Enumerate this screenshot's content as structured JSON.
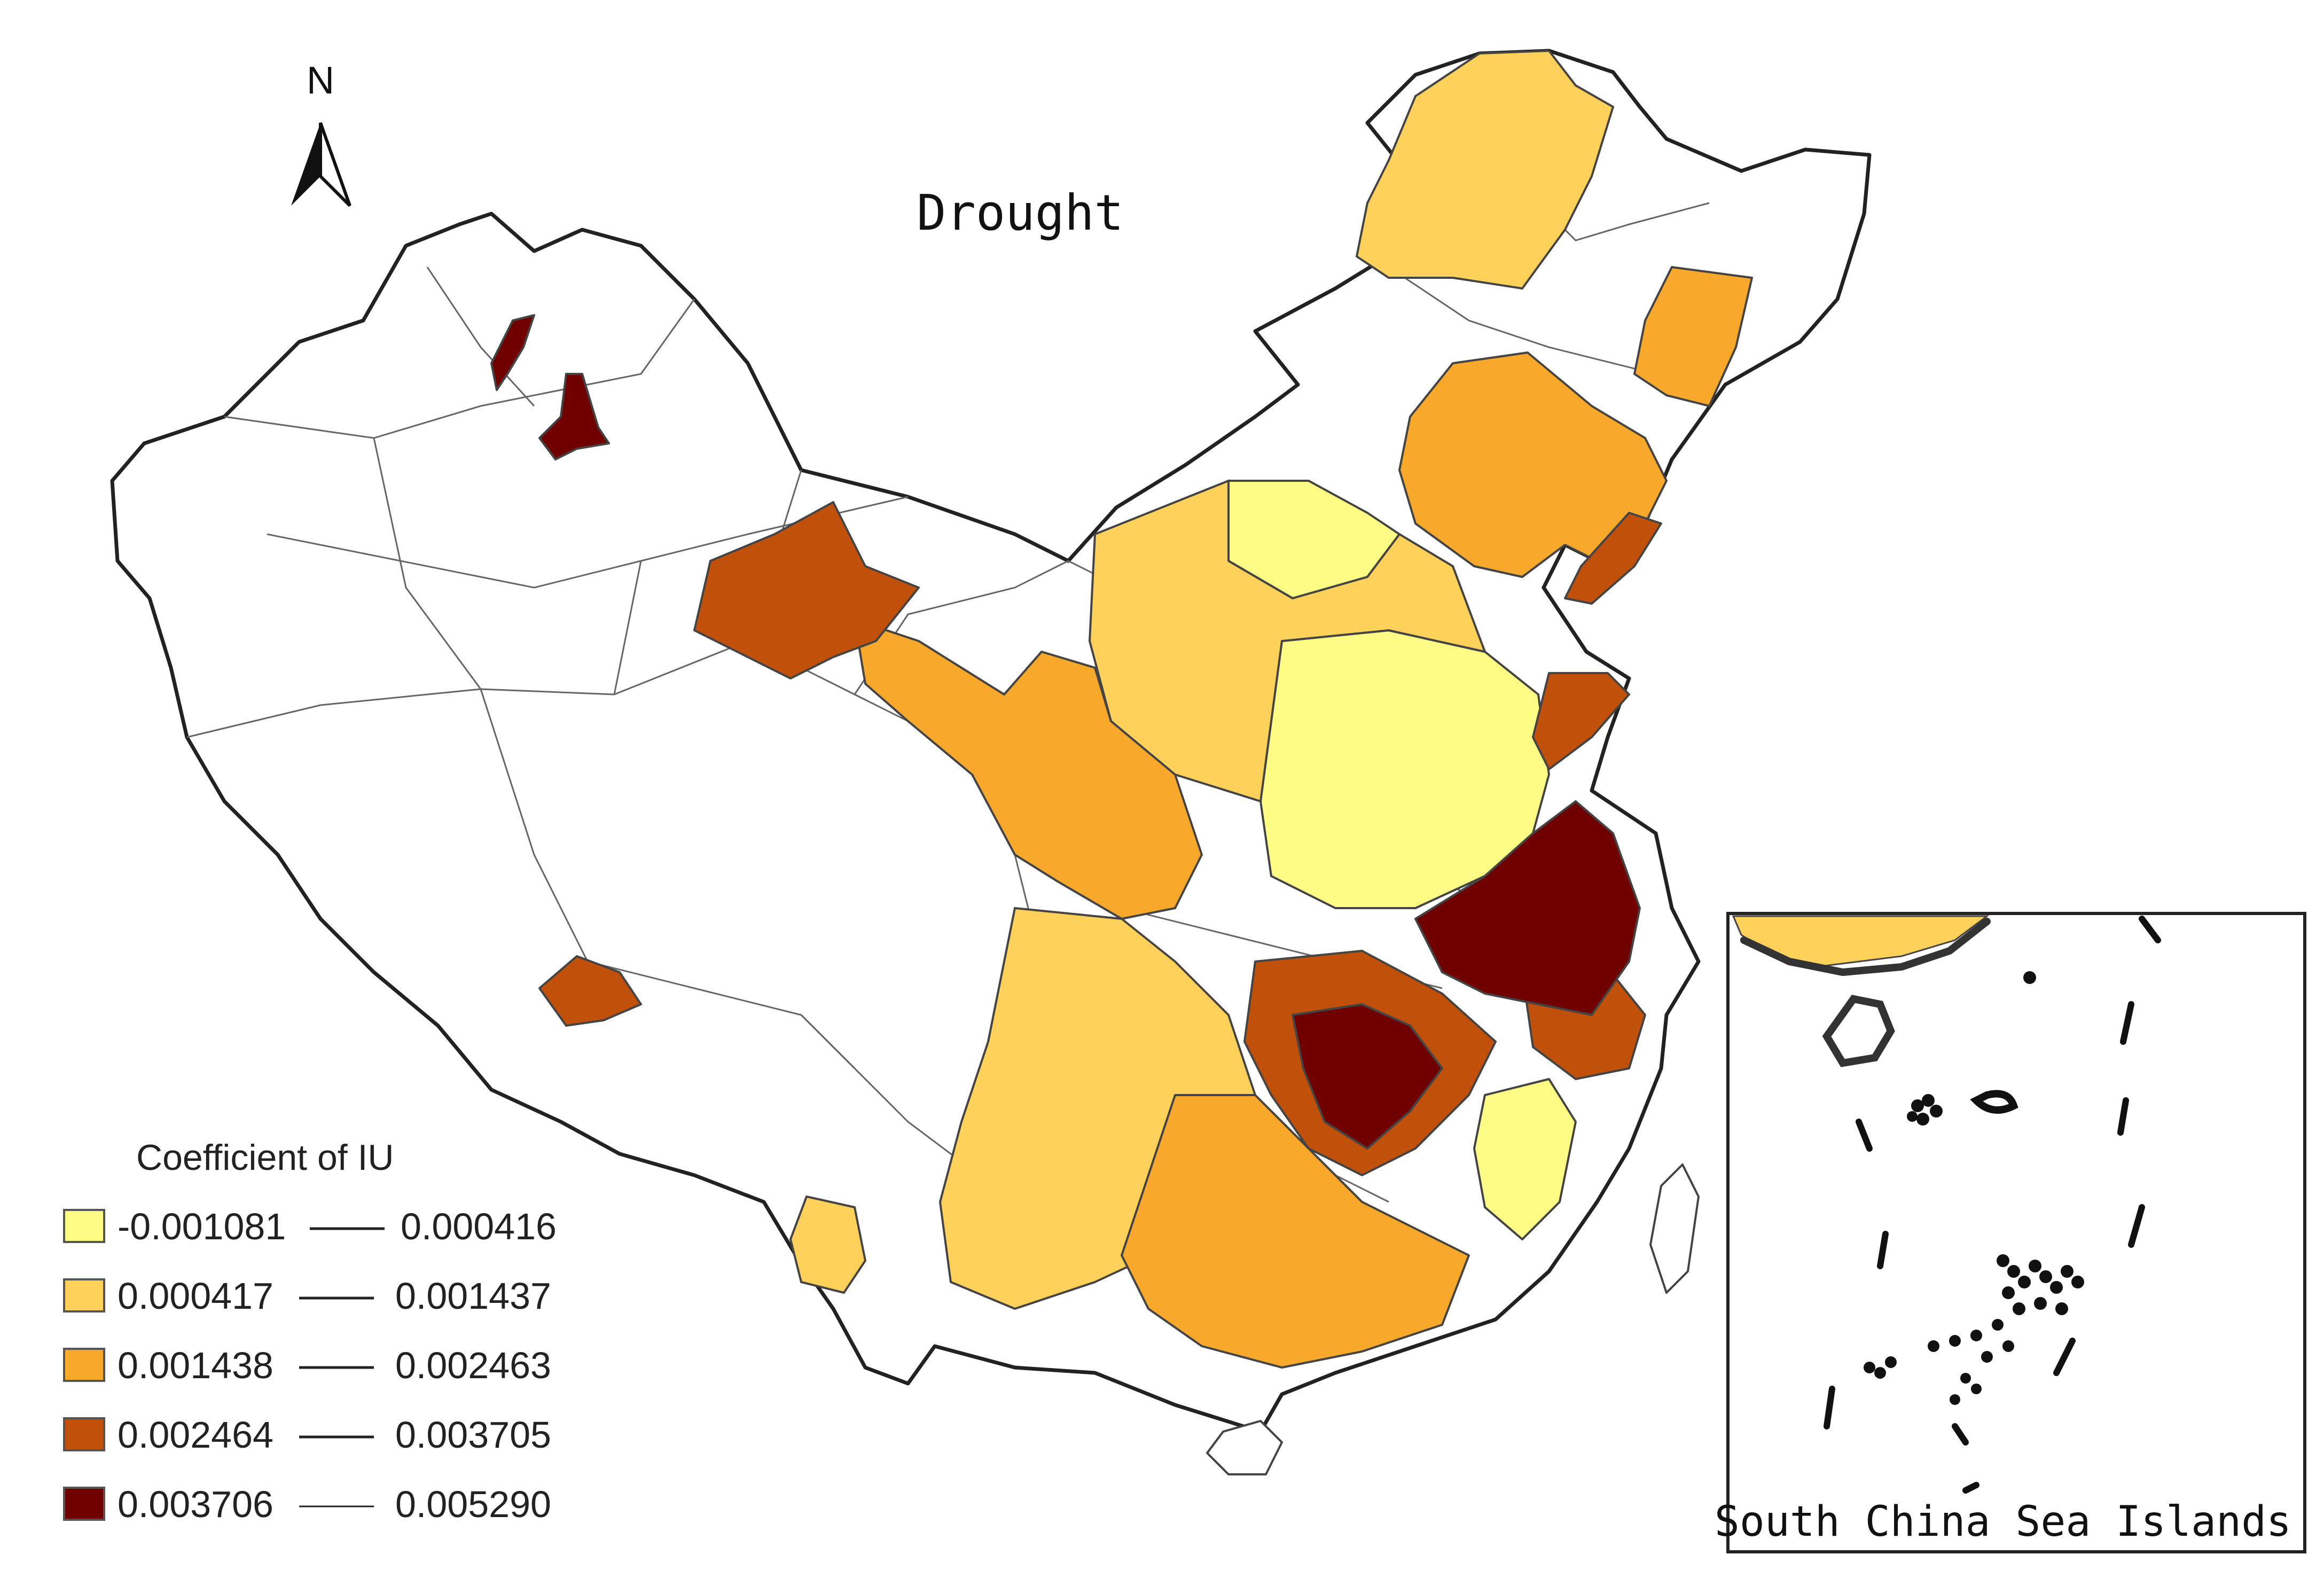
{
  "map": {
    "title": "Drought",
    "north_label": "N",
    "legend": {
      "title": "Coefficient of IU",
      "items": [
        {
          "from": "-0.001081",
          "to": "0.000416",
          "color": "#fdfd86"
        },
        {
          "from": "0.000417",
          "to": "0.001437",
          "color": "#fdd15a"
        },
        {
          "from": "0.001438",
          "to": "0.002463",
          "color": "#f8a92c"
        },
        {
          "from": "0.002464",
          "to": "0.003705",
          "color": "#c1510a"
        },
        {
          "from": "0.003706",
          "to": "0.005290",
          "color": "#700000"
        }
      ]
    },
    "inset": {
      "label": "South China Sea Islands"
    },
    "no_data_color": "#ffffff",
    "border_color": "#333333"
  }
}
